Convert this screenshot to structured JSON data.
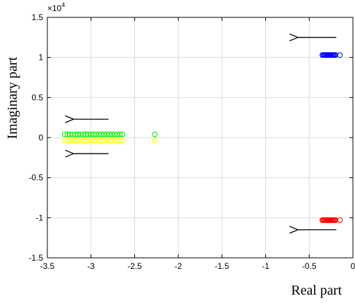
{
  "chart_data": {
    "type": "scatter",
    "title": "",
    "xlabel": "Real part",
    "ylabel": "Imaginary part",
    "xlim": [
      -3.5,
      0
    ],
    "ylim": [
      -15000,
      15000
    ],
    "y_exponent_label": "×10",
    "y_exponent_power": "4",
    "xticks": [
      "-3.5",
      "-3",
      "-2.5",
      "-2",
      "-1.5",
      "-1",
      "-0.5",
      "0"
    ],
    "xtick_values": [
      -3.5,
      -3,
      -2.5,
      -2,
      -1.5,
      -1,
      -0.5,
      0
    ],
    "yticks": [
      "-1.5",
      "-1",
      "-0.5",
      "0",
      "0.5",
      "1",
      "1.5"
    ],
    "ytick_values": [
      -15000,
      -10000,
      -5000,
      0,
      5000,
      10000,
      15000
    ],
    "grid": true,
    "marker": "open-circle",
    "series": [
      {
        "color": "#0000ff",
        "points": [
          [
            -0.35,
            10300
          ],
          [
            -0.34,
            10300
          ],
          [
            -0.33,
            10300
          ],
          [
            -0.32,
            10300
          ],
          [
            -0.31,
            10300
          ],
          [
            -0.3,
            10300
          ],
          [
            -0.29,
            10300
          ],
          [
            -0.28,
            10300
          ],
          [
            -0.27,
            10300
          ],
          [
            -0.26,
            10300
          ],
          [
            -0.25,
            10300
          ],
          [
            -0.24,
            10300
          ],
          [
            -0.23,
            10300
          ],
          [
            -0.22,
            10300
          ],
          [
            -0.21,
            10300
          ],
          [
            -0.2,
            10300
          ],
          [
            -0.15,
            10300
          ]
        ]
      },
      {
        "color": "#ff0000",
        "points": [
          [
            -0.35,
            -10300
          ],
          [
            -0.34,
            -10300
          ],
          [
            -0.33,
            -10300
          ],
          [
            -0.32,
            -10300
          ],
          [
            -0.31,
            -10300
          ],
          [
            -0.3,
            -10300
          ],
          [
            -0.29,
            -10300
          ],
          [
            -0.28,
            -10300
          ],
          [
            -0.27,
            -10300
          ],
          [
            -0.26,
            -10300
          ],
          [
            -0.25,
            -10300
          ],
          [
            -0.24,
            -10300
          ],
          [
            -0.23,
            -10300
          ],
          [
            -0.22,
            -10300
          ],
          [
            -0.21,
            -10300
          ],
          [
            -0.2,
            -10300
          ],
          [
            -0.15,
            -10300
          ]
        ]
      },
      {
        "color": "#00ee00",
        "points": [
          [
            -3.3,
            400
          ],
          [
            -3.27,
            400
          ],
          [
            -3.24,
            400
          ],
          [
            -3.21,
            400
          ],
          [
            -3.18,
            400
          ],
          [
            -3.15,
            400
          ],
          [
            -3.12,
            400
          ],
          [
            -3.09,
            400
          ],
          [
            -3.06,
            400
          ],
          [
            -3.03,
            400
          ],
          [
            -3.0,
            400
          ],
          [
            -2.97,
            400
          ],
          [
            -2.94,
            400
          ],
          [
            -2.91,
            400
          ],
          [
            -2.88,
            400
          ],
          [
            -2.85,
            400
          ],
          [
            -2.82,
            400
          ],
          [
            -2.79,
            400
          ],
          [
            -2.76,
            400
          ],
          [
            -2.73,
            400
          ],
          [
            -2.7,
            400
          ],
          [
            -2.67,
            400
          ],
          [
            -2.64,
            400
          ],
          [
            -2.27,
            400
          ]
        ]
      },
      {
        "color": "#ffff00",
        "points": [
          [
            -3.3,
            -400
          ],
          [
            -3.27,
            -400
          ],
          [
            -3.24,
            -400
          ],
          [
            -3.21,
            -400
          ],
          [
            -3.18,
            -400
          ],
          [
            -3.15,
            -400
          ],
          [
            -3.12,
            -400
          ],
          [
            -3.09,
            -400
          ],
          [
            -3.06,
            -400
          ],
          [
            -3.03,
            -400
          ],
          [
            -3.0,
            -400
          ],
          [
            -2.97,
            -400
          ],
          [
            -2.94,
            -400
          ],
          [
            -2.91,
            -400
          ],
          [
            -2.88,
            -400
          ],
          [
            -2.85,
            -400
          ],
          [
            -2.82,
            -400
          ],
          [
            -2.79,
            -400
          ],
          [
            -2.76,
            -400
          ],
          [
            -2.73,
            -400
          ],
          [
            -2.7,
            -400
          ],
          [
            -2.67,
            -400
          ],
          [
            -2.64,
            -400
          ],
          [
            -2.27,
            -400
          ]
        ]
      }
    ],
    "annotations": [
      {
        "type": "arrow",
        "direction": "left",
        "from": [
          -0.19,
          12500
        ],
        "to": [
          -0.63,
          12500
        ]
      },
      {
        "type": "arrow",
        "direction": "left",
        "from": [
          -2.8,
          2300
        ],
        "to": [
          -3.2,
          2300
        ]
      },
      {
        "type": "arrow",
        "direction": "left",
        "from": [
          -2.8,
          -2000
        ],
        "to": [
          -3.2,
          -2000
        ]
      },
      {
        "type": "arrow",
        "direction": "left",
        "from": [
          -0.19,
          -11500
        ],
        "to": [
          -0.63,
          -11500
        ]
      }
    ]
  }
}
